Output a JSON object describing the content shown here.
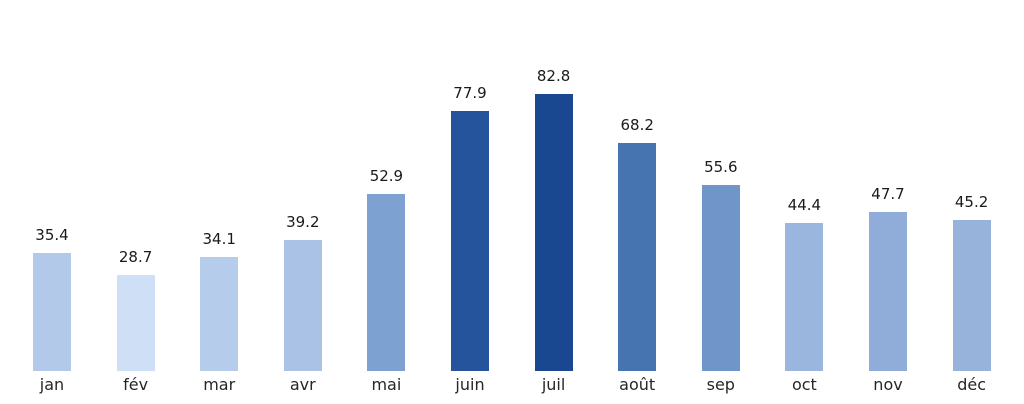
{
  "chart_data": {
    "type": "bar",
    "title": "",
    "xlabel": "",
    "ylabel": "",
    "categories": [
      "jan",
      "fév",
      "mar",
      "avr",
      "mai",
      "juin",
      "juil",
      "août",
      "sep",
      "oct",
      "nov",
      "déc"
    ],
    "values": [
      35.4,
      28.7,
      34.1,
      39.2,
      52.9,
      77.9,
      82.8,
      68.2,
      55.6,
      44.4,
      47.7,
      45.2
    ],
    "value_labels": [
      "35.4",
      "28.7",
      "34.1",
      "39.2",
      "52.9",
      "77.9",
      "82.8",
      "68.2",
      "55.6",
      "44.4",
      "47.7",
      "45.2"
    ],
    "bar_colors": [
      "#b3c9e9",
      "#cfdff6",
      "#b6cceb",
      "#aac2e6",
      "#7da1d1",
      "#26549c",
      "#1a4890",
      "#4674b0",
      "#7095c8",
      "#9ab5de",
      "#90acd8",
      "#98b3db"
    ],
    "ylim": [
      0,
      111
    ],
    "grid": false,
    "axes_visible": false,
    "legend": null,
    "label_color": "#1a1a1a",
    "background_color": "#ffffff"
  }
}
